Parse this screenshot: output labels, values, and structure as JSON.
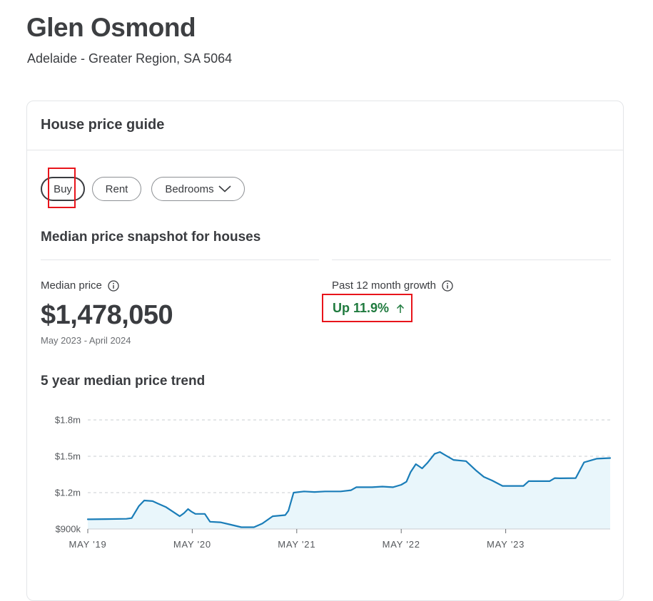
{
  "suburb": {
    "name": "Glen Osmond",
    "location": "Adelaide - Greater Region, SA 5064"
  },
  "card": {
    "title": "House price guide",
    "filters": {
      "buy": "Buy",
      "rent": "Rent",
      "bedrooms": "Bedrooms",
      "selected": "Buy"
    },
    "snapshot_title": "Median price snapshot for houses",
    "median": {
      "label": "Median price",
      "value": "$1,478,050",
      "period": "May 2023 - April 2024"
    },
    "growth": {
      "label": "Past 12 month growth",
      "value": "Up 11.9%",
      "direction": "up"
    },
    "trend_title": "5 year median price trend"
  },
  "icons": {
    "median_info": "info-icon",
    "growth_info": "info-icon",
    "growth_arrow": "arrow-up-icon",
    "bedrooms_chevron": "chevron-down-icon"
  },
  "colors": {
    "line": "#1a7db8",
    "fill": "#e9f6fb",
    "growth": "#1f7a3e",
    "annotation": "#e8141b"
  },
  "chart_data": {
    "type": "area",
    "ylim": [
      900000,
      1800000
    ],
    "yticks": [
      900000,
      1200000,
      1500000,
      1800000
    ],
    "ytick_labels": [
      "$900k",
      "$1.2m",
      "$1.5m",
      "$1.8m"
    ],
    "xlim": [
      2019.33,
      2024.33
    ],
    "xticks": [
      2019.33,
      2020.33,
      2021.33,
      2022.33,
      2023.33
    ],
    "xtick_labels": [
      "MAY '19",
      "MAY '20",
      "MAY '21",
      "MAY '22",
      "MAY '23"
    ],
    "grid": true,
    "series": [
      {
        "values": [
          [
            2019.33,
            980000
          ],
          [
            2019.5,
            982000
          ],
          [
            2019.7,
            984000
          ],
          [
            2019.75,
            990000
          ],
          [
            2019.82,
            1090000
          ],
          [
            2019.87,
            1135000
          ],
          [
            2019.95,
            1130000
          ],
          [
            2020.0,
            1110000
          ],
          [
            2020.08,
            1080000
          ],
          [
            2020.15,
            1040000
          ],
          [
            2020.21,
            1005000
          ],
          [
            2020.25,
            1030000
          ],
          [
            2020.29,
            1065000
          ],
          [
            2020.32,
            1045000
          ],
          [
            2020.36,
            1025000
          ],
          [
            2020.45,
            1025000
          ],
          [
            2020.5,
            960000
          ],
          [
            2020.6,
            955000
          ],
          [
            2020.7,
            935000
          ],
          [
            2020.8,
            915000
          ],
          [
            2020.92,
            915000
          ],
          [
            2021.0,
            945000
          ],
          [
            2021.1,
            1005000
          ],
          [
            2021.22,
            1015000
          ],
          [
            2021.25,
            1050000
          ],
          [
            2021.3,
            1200000
          ],
          [
            2021.4,
            1210000
          ],
          [
            2021.5,
            1205000
          ],
          [
            2021.6,
            1210000
          ],
          [
            2021.75,
            1210000
          ],
          [
            2021.85,
            1220000
          ],
          [
            2021.9,
            1245000
          ],
          [
            2022.05,
            1245000
          ],
          [
            2022.15,
            1250000
          ],
          [
            2022.25,
            1245000
          ],
          [
            2022.33,
            1265000
          ],
          [
            2022.38,
            1290000
          ],
          [
            2022.42,
            1370000
          ],
          [
            2022.47,
            1435000
          ],
          [
            2022.53,
            1400000
          ],
          [
            2022.58,
            1445000
          ],
          [
            2022.65,
            1520000
          ],
          [
            2022.7,
            1535000
          ],
          [
            2022.75,
            1510000
          ],
          [
            2022.83,
            1470000
          ],
          [
            2022.95,
            1460000
          ],
          [
            2023.05,
            1380000
          ],
          [
            2023.12,
            1330000
          ],
          [
            2023.2,
            1300000
          ],
          [
            2023.3,
            1255000
          ],
          [
            2023.4,
            1255000
          ],
          [
            2023.5,
            1255000
          ],
          [
            2023.55,
            1295000
          ],
          [
            2023.65,
            1295000
          ],
          [
            2023.75,
            1295000
          ],
          [
            2023.8,
            1320000
          ],
          [
            2023.85,
            1318000
          ],
          [
            2024.0,
            1320000
          ],
          [
            2024.08,
            1450000
          ],
          [
            2024.2,
            1480000
          ],
          [
            2024.33,
            1485000
          ]
        ]
      }
    ]
  }
}
